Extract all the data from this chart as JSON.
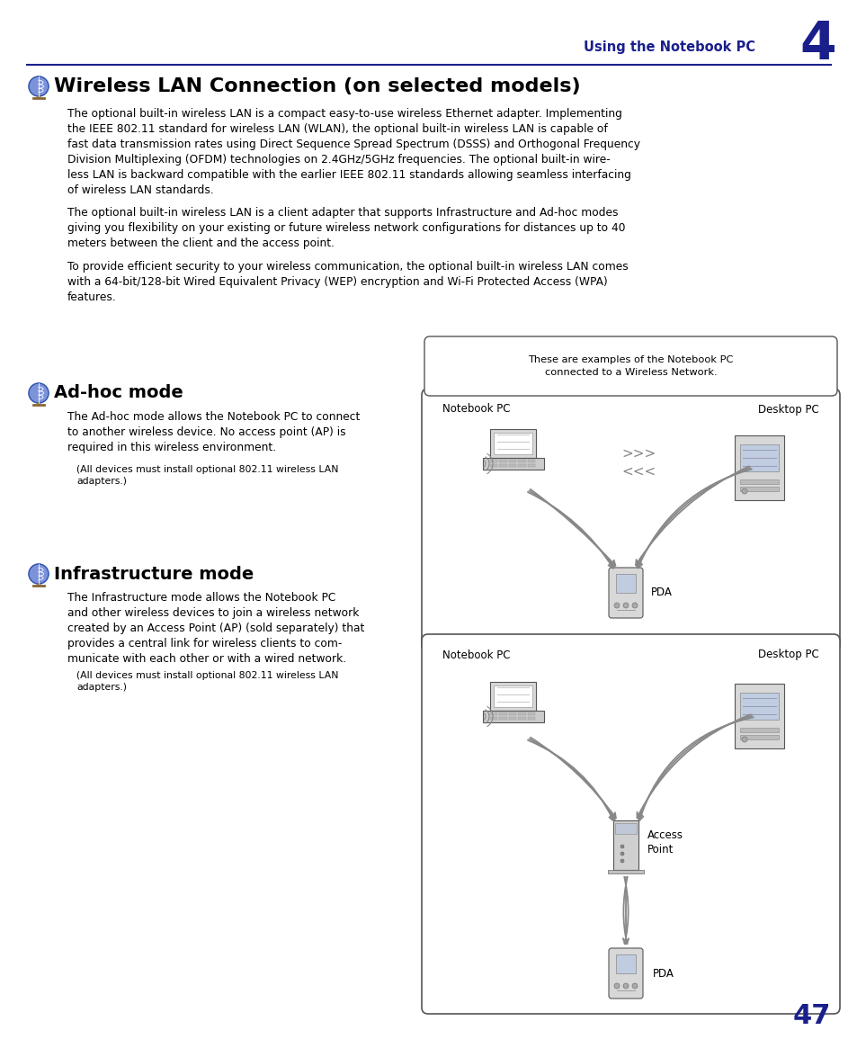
{
  "page_bg": "#ffffff",
  "header_color": "#1a1f8c",
  "header_text": "Using the Notebook PC",
  "header_number": "4",
  "title_color": "#000000",
  "title_text": "Wireless LAN Connection (on selected models)",
  "body_color": "#000000",
  "blue_color": "#1a1f8c",
  "page_number": "47",
  "line_color": "#1a1f8c",
  "para1": "The optional built-in wireless LAN is a compact easy-to-use wireless Ethernet adapter. Implementing\nthe IEEE 802.11 standard for wireless LAN (WLAN), the optional built-in wireless LAN is capable of\nfast data transmission rates using Direct Sequence Spread Spectrum (DSSS) and Orthogonal Frequency\nDivision Multiplexing (OFDM) technologies on 2.4GHz/5GHz frequencies. The optional built-in wire-\nless LAN is backward compatible with the earlier IEEE 802.11 standards allowing seamless interfacing\nof wireless LAN standards.",
  "para2": "The optional built-in wireless LAN is a client adapter that supports Infrastructure and Ad-hoc modes\ngiving you flexibility on your existing or future wireless network configurations for distances up to 40\nmeters between the client and the access point.",
  "para3": "To provide efficient security to your wireless communication, the optional built-in wireless LAN comes\nwith a 64-bit/128-bit Wired Equivalent Privacy (WEP) encryption and Wi-Fi Protected Access (WPA)\nfeatures.",
  "adhoc_title": "Ad-hoc mode",
  "adhoc_para": "The Ad-hoc mode allows the Notebook PC to connect\nto another wireless device. No access point (AP) is\nrequired in this wireless environment.",
  "adhoc_note": "(All devices must install optional 802.11 wireless LAN\nadapters.)",
  "infra_title": "Infrastructure mode",
  "infra_para": "The Infrastructure mode allows the Notebook PC\nand other wireless devices to join a wireless network\ncreated by an Access Point (AP) (sold separately) that\nprovides a central link for wireless clients to com-\nmunicate with each other or with a wired network.",
  "infra_note": "(All devices must install optional 802.11 wireless LAN\nadapters.)",
  "callout_text": "These are examples of the Notebook PC\nconnected to a Wireless Network.",
  "signal_color": "#888888",
  "device_face": "#e8e8e8",
  "device_edge": "#666666"
}
